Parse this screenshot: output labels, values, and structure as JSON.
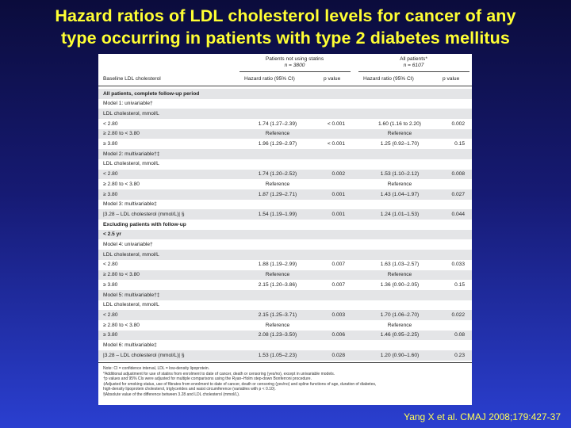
{
  "title": {
    "line1": "Hazard ratios of LDL cholesterol levels for cancer of any",
    "line2": "type occurring in patients with type 2 diabetes mellitus"
  },
  "table": {
    "group1_title": "Patients not using statins",
    "group1_n": "n = 3800",
    "group2_title": "All patients*",
    "group2_n": "n = 6107",
    "col_label": "Baseline LDL cholesterol",
    "col_hr1": "Hazard ratio (95% CI)",
    "col_p1": "p value",
    "col_hr2": "Hazard ratio (95% CI)",
    "col_p2": "p value",
    "rows": [
      {
        "label": "All patients, complete follow-up period",
        "bold": true,
        "hr1": "",
        "p1": "",
        "hr2": "",
        "p2": ""
      },
      {
        "label": "Model 1: univariable†",
        "bold": false,
        "hr1": "",
        "p1": "",
        "hr2": "",
        "p2": ""
      },
      {
        "label": "   LDL cholesterol, mmol/L",
        "bold": false,
        "hr1": "",
        "p1": "",
        "hr2": "",
        "p2": ""
      },
      {
        "label": "      < 2.80",
        "bold": false,
        "hr1": "1.74 (1.27–2.39)",
        "p1": "< 0.001",
        "hr2": "1.60 (1.16 to 2.20)",
        "p2": "0.002"
      },
      {
        "label": "      ≥ 2.80 to < 3.80",
        "bold": false,
        "hr1": "Reference",
        "p1": "",
        "hr2": "Reference",
        "p2": ""
      },
      {
        "label": "      ≥ 3.80",
        "bold": false,
        "hr1": "1.96 (1.29–2.97)",
        "p1": "< 0.001",
        "hr2": "1.25 (0.92–1.70)",
        "p2": "0.15"
      },
      {
        "label": "Model 2: multivariable†‡",
        "bold": false,
        "hr1": "",
        "p1": "",
        "hr2": "",
        "p2": ""
      },
      {
        "label": "   LDL cholesterol, mmol/L",
        "bold": false,
        "hr1": "",
        "p1": "",
        "hr2": "",
        "p2": ""
      },
      {
        "label": "      < 2.80",
        "bold": false,
        "hr1": "1.74 (1.20–2.52)",
        "p1": "0.002",
        "hr2": "1.53 (1.10–2.12)",
        "p2": "0.008"
      },
      {
        "label": "      ≥ 2.80 to < 3.80",
        "bold": false,
        "hr1": "Reference",
        "p1": "",
        "hr2": "Reference",
        "p2": ""
      },
      {
        "label": "      ≥ 3.80",
        "bold": false,
        "hr1": "1.87 (1.29–2.71)",
        "p1": "0.001",
        "hr2": "1.43 (1.04–1.97)",
        "p2": "0.027"
      },
      {
        "label": "Model 3: multivariable‡",
        "bold": false,
        "hr1": "",
        "p1": "",
        "hr2": "",
        "p2": ""
      },
      {
        "label": "   |3.28 – LDL cholesterol (mmol/L)| §",
        "bold": false,
        "hr1": "1.54 (1.19–1.99)",
        "p1": "0.001",
        "hr2": "1.24 (1.01–1.53)",
        "p2": "0.044"
      },
      {
        "label": "Excluding patients with follow-up",
        "bold": true,
        "hr1": "",
        "p1": "",
        "hr2": "",
        "p2": ""
      },
      {
        "label": "< 2.5 yr",
        "bold": true,
        "hr1": "",
        "p1": "",
        "hr2": "",
        "p2": ""
      },
      {
        "label": "Model 4: univariable†",
        "bold": false,
        "hr1": "",
        "p1": "",
        "hr2": "",
        "p2": ""
      },
      {
        "label": "   LDL cholesterol, mmol/L",
        "bold": false,
        "hr1": "",
        "p1": "",
        "hr2": "",
        "p2": ""
      },
      {
        "label": "      < 2.80",
        "bold": false,
        "hr1": "1.88 (1.19–2.99)",
        "p1": "0.007",
        "hr2": "1.63 (1.03–2.57)",
        "p2": "0.033"
      },
      {
        "label": "      ≥ 2.80 to < 3.80",
        "bold": false,
        "hr1": "Reference",
        "p1": "",
        "hr2": "Reference",
        "p2": ""
      },
      {
        "label": "      ≥ 3.80",
        "bold": false,
        "hr1": "2.15 (1.20–3.86)",
        "p1": "0.007",
        "hr2": "1.36 (0.90–2.05)",
        "p2": "0.15"
      },
      {
        "label": "Model 5: multivariable†‡",
        "bold": false,
        "hr1": "",
        "p1": "",
        "hr2": "",
        "p2": ""
      },
      {
        "label": "   LDL cholesterol, mmol/L",
        "bold": false,
        "hr1": "",
        "p1": "",
        "hr2": "",
        "p2": ""
      },
      {
        "label": "      < 2.80",
        "bold": false,
        "hr1": "2.15 (1.25–3.71)",
        "p1": "0.003",
        "hr2": "1.70 (1.06–2.70)",
        "p2": "0.022"
      },
      {
        "label": "      ≥ 2.80 to < 3.80",
        "bold": false,
        "hr1": "Reference",
        "p1": "",
        "hr2": "Reference",
        "p2": ""
      },
      {
        "label": "      ≥ 3.80",
        "bold": false,
        "hr1": "2.08 (1.23–3.50)",
        "p1": "0.006",
        "hr2": "1.46 (0.95–2.25)",
        "p2": "0.08"
      },
      {
        "label": "Model 6: multivariable‡",
        "bold": false,
        "hr1": "",
        "p1": "",
        "hr2": "",
        "p2": ""
      },
      {
        "label": "   |3.28 – LDL cholesterol (mmol/L)| §",
        "bold": false,
        "hr1": "1.53 (1.05–2.23)",
        "p1": "0.028",
        "hr2": "1.20 (0.90–1.60)",
        "p2": "0.23"
      }
    ],
    "notes": [
      "Note: CI = confidence interval, LDL = low-density lipoprotein.",
      "*Additional adjustment for use of statins from enrolment to date of cancer, death or censoring (yes/no), except in univariable models.",
      "†p values and 95% CIs were adjusted for multiple comparisons using the Ryan–Holm step-down Bonferroni procedure.",
      "‡Adjusted for smoking status, use of fibrates from enrolment to date of cancer, death or censoring (yes/no) and spline functions of age, duration of diabetes,",
      "high-density lipoprotein cholesterol, triglycerides and waist circumference (variables with p < 0.10).",
      "§Absolute value of the difference between 3.28 and LDL cholesterol (mmol/L)."
    ]
  },
  "citation": "Yang X et al. CMAJ 2008;179:427-37",
  "colors": {
    "title": "#ffff33",
    "citation": "#ffff55",
    "row_shade": "#e4e5e7"
  }
}
